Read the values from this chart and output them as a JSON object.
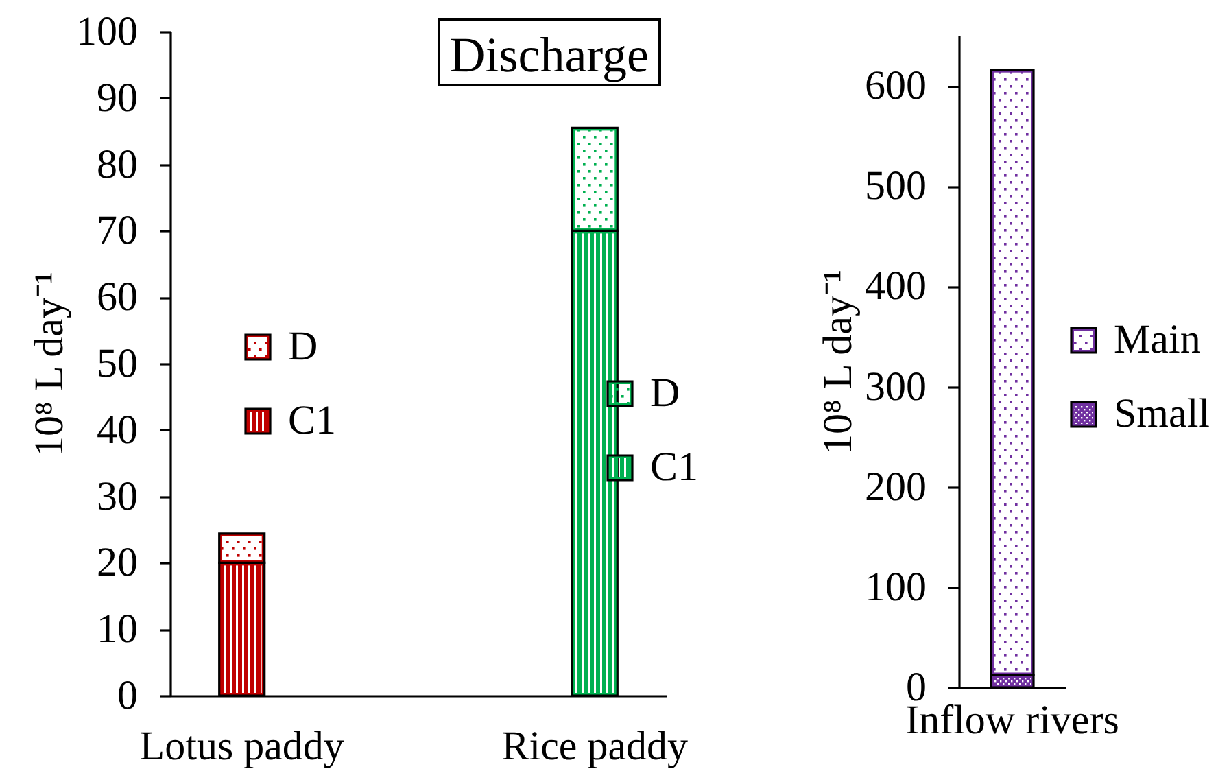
{
  "chart_data": [
    {
      "type": "bar",
      "title": "Discharge",
      "ylabel": "10⁸ L day⁻¹",
      "categories": [
        "Lotus paddy",
        "Rice paddy"
      ],
      "series": [
        {
          "name": "C1",
          "color": "#c00000",
          "values": [
            20,
            null
          ]
        },
        {
          "name": "D",
          "color": "#c00000",
          "values": [
            4.4,
            null
          ]
        },
        {
          "name": "C1",
          "color": "#00b050",
          "values": [
            null,
            70
          ]
        },
        {
          "name": "D",
          "color": "#00b050",
          "values": [
            null,
            15.5
          ]
        }
      ],
      "stacked": true,
      "ylim": [
        0,
        100
      ],
      "yticks": [
        0,
        10,
        20,
        30,
        40,
        50,
        60,
        70,
        80,
        90,
        100
      ],
      "legend": "right"
    },
    {
      "type": "bar",
      "ylabel": "10⁸ L day⁻¹",
      "categories": [
        "Inflow rivers"
      ],
      "series": [
        {
          "name": "Small",
          "color": "#7030a0",
          "values": [
            12
          ]
        },
        {
          "name": "Main",
          "color": "#7030a0",
          "values": [
            604
          ]
        }
      ],
      "stacked": true,
      "ylim": [
        0,
        650
      ],
      "yticks": [
        0,
        100,
        200,
        300,
        400,
        500,
        600
      ],
      "legend": "right"
    }
  ]
}
